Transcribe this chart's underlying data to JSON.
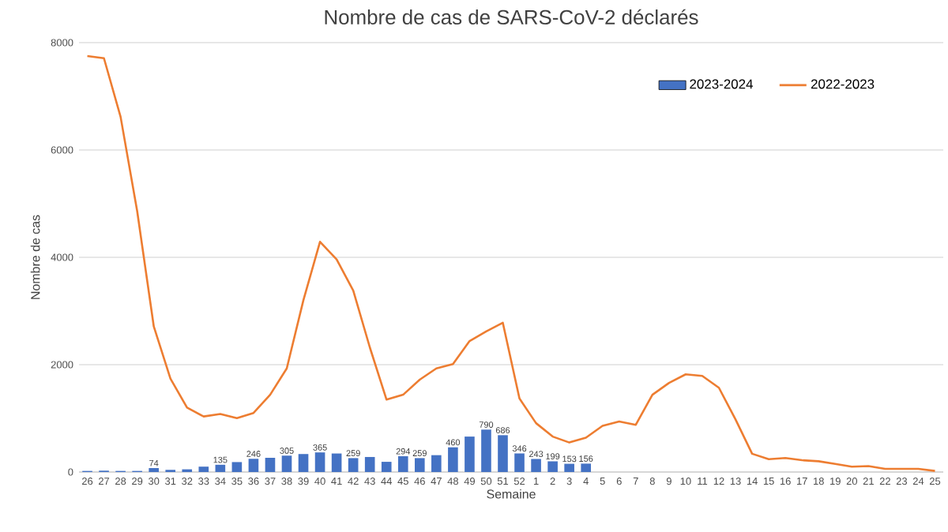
{
  "chart_data": {
    "type": "bar",
    "title": "Nombre de cas de SARS-CoV-2 déclarés",
    "xlabel": "Semaine",
    "ylabel": "Nombre de cas",
    "categories": [
      "26",
      "27",
      "28",
      "29",
      "30",
      "31",
      "32",
      "33",
      "34",
      "35",
      "36",
      "37",
      "38",
      "39",
      "40",
      "41",
      "42",
      "43",
      "44",
      "45",
      "46",
      "47",
      "48",
      "49",
      "50",
      "51",
      "52",
      "1",
      "2",
      "3",
      "4",
      "5",
      "6",
      "7",
      "8",
      "9",
      "10",
      "11",
      "12",
      "13",
      "14",
      "15",
      "16",
      "17",
      "18",
      "19",
      "20",
      "21",
      "22",
      "23",
      "24",
      "25"
    ],
    "series": [
      {
        "name": "2023-2024",
        "color": "#4472c4",
        "values": [
          20,
          25,
          20,
          20,
          74,
          40,
          50,
          100,
          135,
          185,
          246,
          265,
          305,
          335,
          365,
          345,
          259,
          280,
          190,
          294,
          259,
          314,
          460,
          660,
          790,
          686,
          346,
          243,
          199,
          153,
          156,
          null,
          null,
          null,
          null,
          null,
          null,
          null,
          null,
          null,
          null,
          null,
          null,
          null,
          null,
          null,
          null,
          null,
          null,
          null,
          null,
          null
        ],
        "value_labels": [
          null,
          null,
          null,
          null,
          "74",
          null,
          null,
          null,
          "135",
          null,
          "246",
          null,
          "305",
          null,
          "365",
          null,
          "259",
          null,
          null,
          "294",
          "259",
          null,
          "460",
          null,
          "790",
          "686",
          "346",
          "243",
          "199",
          "153",
          "156",
          null,
          null,
          null,
          null,
          null,
          null,
          null,
          null,
          null,
          null,
          null,
          null,
          null,
          null,
          null,
          null,
          null,
          null,
          null,
          null,
          null
        ]
      },
      {
        "name": "2022-2023",
        "type": "line",
        "color": "#ed7d31",
        "values": [
          7750,
          7710,
          6620,
          4860,
          2710,
          1740,
          1200,
          1035,
          1080,
          1005,
          1100,
          1440,
          1930,
          3200,
          4290,
          3960,
          3380,
          2320,
          1350,
          1440,
          1720,
          1930,
          2010,
          2440,
          2620,
          2780,
          1370,
          910,
          660,
          550,
          640,
          860,
          940,
          880,
          1440,
          1660,
          1820,
          1790,
          1570,
          980,
          340,
          240,
          260,
          220,
          200,
          150,
          100,
          110,
          60,
          60,
          60,
          20
        ]
      }
    ],
    "ylim": [
      0,
      8000
    ],
    "yticks": [
      0,
      2000,
      4000,
      6000,
      8000
    ],
    "grid": "y",
    "legend": "top right",
    "marker": "none"
  }
}
